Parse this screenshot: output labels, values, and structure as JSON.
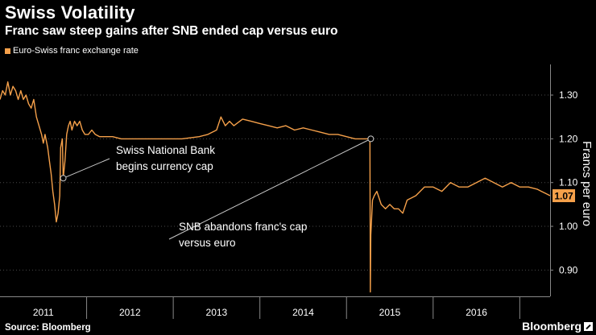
{
  "header": {
    "title": "Swiss Volatility",
    "subtitle": "Franc saw steep gains after SNB ended cap versus euro"
  },
  "footer": {
    "source": "Source: Bloomberg",
    "brand": "Bloomberg",
    "brand_icon": "bloomberg-logo-icon"
  },
  "colors": {
    "line": "#f5a04a",
    "background": "#000000",
    "grid": "#4a4a4a",
    "text": "#ffffff",
    "annotation": "#c8c8c8"
  },
  "chart_data": {
    "type": "line",
    "title": "Swiss Volatility",
    "subtitle": "Franc saw steep gains after SNB ended cap versus euro",
    "legend": [
      "Euro-Swiss franc exchange rate"
    ],
    "legend_placement": "top-left",
    "ylabel": "Francs per euro",
    "xlabel": "",
    "xlim": [
      2010.5,
      2016.85
    ],
    "ylim": [
      0.84,
      1.37
    ],
    "yticks": [
      0.9,
      1.0,
      1.1,
      1.2,
      1.3
    ],
    "ytick_labels": [
      "0.90",
      "1.00",
      "1.10",
      "1.20",
      "1.30"
    ],
    "xtick_labels": [
      "2011",
      "2012",
      "2013",
      "2014",
      "2015",
      "2016"
    ],
    "xtick_centers": [
      2011.0,
      2012.0,
      2013.0,
      2014.0,
      2015.0,
      2016.0
    ],
    "year_boundaries": [
      2011.5,
      2012.5,
      2013.5,
      2014.5,
      2015.5,
      2016.5
    ],
    "grid": true,
    "last_value": 1.07,
    "last_value_label": "1.07",
    "series": [
      {
        "name": "Euro-Swiss franc exchange rate",
        "x": [
          2010.5,
          2010.53,
          2010.56,
          2010.59,
          2010.62,
          2010.65,
          2010.68,
          2010.71,
          2010.74,
          2010.77,
          2010.8,
          2010.83,
          2010.86,
          2010.89,
          2010.92,
          2010.95,
          2010.98,
          2011.0,
          2011.02,
          2011.05,
          2011.07,
          2011.09,
          2011.11,
          2011.13,
          2011.15,
          2011.17,
          2011.19,
          2011.2,
          2011.22,
          2011.23,
          2011.25,
          2011.27,
          2011.29,
          2011.31,
          2011.33,
          2011.36,
          2011.39,
          2011.42,
          2011.45,
          2011.48,
          2011.52,
          2011.56,
          2011.6,
          2011.65,
          2011.7,
          2011.8,
          2011.9,
          2012.0,
          2012.2,
          2012.4,
          2012.6,
          2012.8,
          2012.9,
          2013.0,
          2013.05,
          2013.1,
          2013.15,
          2013.2,
          2013.3,
          2013.4,
          2013.5,
          2013.6,
          2013.7,
          2013.8,
          2013.9,
          2014.0,
          2014.1,
          2014.2,
          2014.3,
          2014.4,
          2014.5,
          2014.6,
          2014.7,
          2014.76,
          2014.77,
          2014.775,
          2014.78,
          2014.8,
          2014.82,
          2014.85,
          2014.9,
          2014.95,
          2015.0,
          2015.05,
          2015.1,
          2015.15,
          2015.2,
          2015.3,
          2015.4,
          2015.5,
          2015.6,
          2015.7,
          2015.8,
          2015.9,
          2016.0,
          2016.1,
          2016.2,
          2016.3,
          2016.4,
          2016.5,
          2016.6,
          2016.7,
          2016.75,
          2016.8,
          2016.85
        ],
        "values": [
          1.29,
          1.31,
          1.3,
          1.33,
          1.3,
          1.32,
          1.31,
          1.29,
          1.31,
          1.29,
          1.3,
          1.28,
          1.27,
          1.29,
          1.25,
          1.23,
          1.21,
          1.19,
          1.21,
          1.18,
          1.15,
          1.12,
          1.08,
          1.05,
          1.01,
          1.03,
          1.07,
          1.18,
          1.2,
          1.11,
          1.15,
          1.21,
          1.23,
          1.24,
          1.22,
          1.24,
          1.23,
          1.24,
          1.22,
          1.21,
          1.21,
          1.22,
          1.21,
          1.205,
          1.205,
          1.205,
          1.2,
          1.2,
          1.2,
          1.2,
          1.2,
          1.205,
          1.21,
          1.22,
          1.25,
          1.23,
          1.24,
          1.23,
          1.245,
          1.24,
          1.235,
          1.23,
          1.225,
          1.23,
          1.22,
          1.225,
          1.22,
          1.215,
          1.21,
          1.21,
          1.205,
          1.2,
          1.2,
          1.2,
          1.2,
          0.85,
          0.98,
          1.06,
          1.07,
          1.08,
          1.05,
          1.04,
          1.05,
          1.04,
          1.04,
          1.03,
          1.06,
          1.07,
          1.09,
          1.09,
          1.08,
          1.1,
          1.09,
          1.09,
          1.1,
          1.11,
          1.1,
          1.09,
          1.1,
          1.09,
          1.09,
          1.085,
          1.08,
          1.075,
          1.07
        ]
      }
    ],
    "annotations": [
      {
        "label_lines": [
          "Swiss National Bank",
          "begins currency cap"
        ],
        "point_x": 2011.23,
        "point_y": 1.11
      },
      {
        "label_lines": [
          "SNB abandons franc's cap",
          "versus euro"
        ],
        "point_x": 2014.78,
        "point_y": 1.2
      }
    ]
  }
}
